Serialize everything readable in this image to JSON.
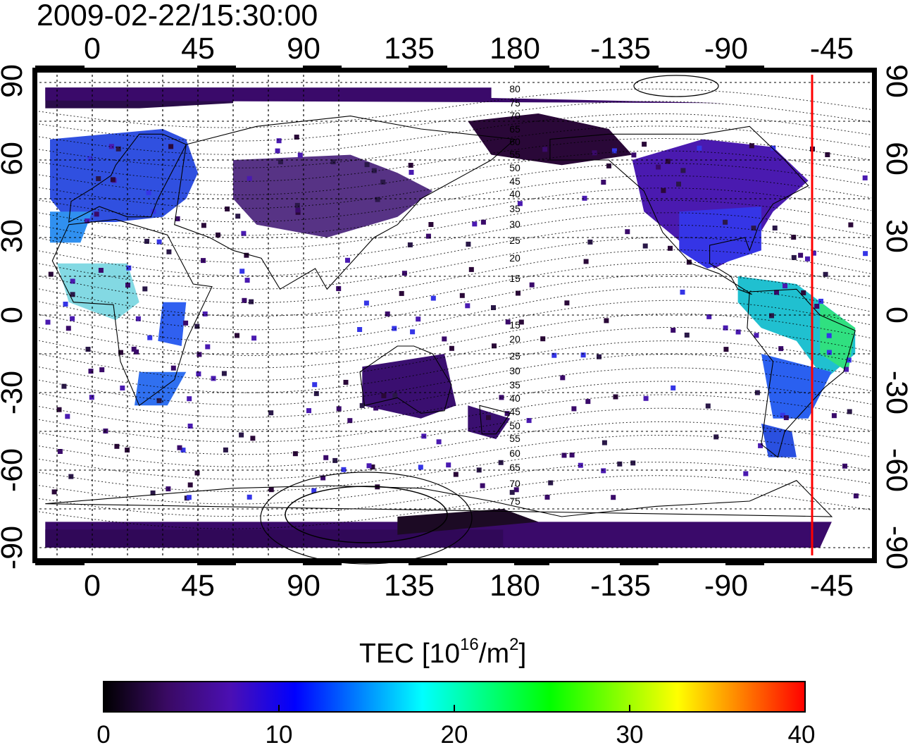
{
  "timestamp": "2009-02-22/15:30:00",
  "axes": {
    "top_ticks": [
      "0",
      "45",
      "90",
      "135",
      "180",
      "-135",
      "-90",
      "-45"
    ],
    "bottom_ticks": [
      "0",
      "45",
      "90",
      "135",
      "180",
      "-135",
      "-90",
      "-45"
    ],
    "left_ticks": [
      "90",
      "60",
      "30",
      "0",
      "-30",
      "-60",
      "-90"
    ],
    "right_ticks": [
      "90",
      "60",
      "30",
      "0",
      "-30",
      "-60",
      "-90"
    ],
    "grid": "dashed"
  },
  "magnetic_latitude_labels": [
    "80",
    "75",
    "70",
    "65",
    "60",
    "55",
    "50",
    "45",
    "40",
    "35",
    "30",
    "25",
    "20",
    "15",
    "15",
    "20",
    "25",
    "30",
    "35",
    "40",
    "45",
    "50",
    "55",
    "60",
    "65",
    "70",
    "75"
  ],
  "marker_line": {
    "longitude": -52,
    "color": "#ff0000"
  },
  "colorbar": {
    "title_main": "TEC  [10",
    "title_exp": "16",
    "title_unit": "/m",
    "title_unit_exp": "2",
    "title_close": "]",
    "tick_labels": [
      "0",
      "10",
      "20",
      "30",
      "40"
    ],
    "range": [
      0,
      40
    ],
    "colormap": [
      "#000000",
      "#3a0a64",
      "#4b0fb4",
      "#0000ff",
      "#0080ff",
      "#00ffff",
      "#00ff80",
      "#00ff00",
      "#80ff00",
      "#ffff00",
      "#ff8000",
      "#ff0000"
    ]
  },
  "colors": {
    "low_tec": "#3c0878",
    "mid_tec": "#2a3cf0",
    "high_tec": "#20e0a0",
    "coast": "#000000"
  }
}
